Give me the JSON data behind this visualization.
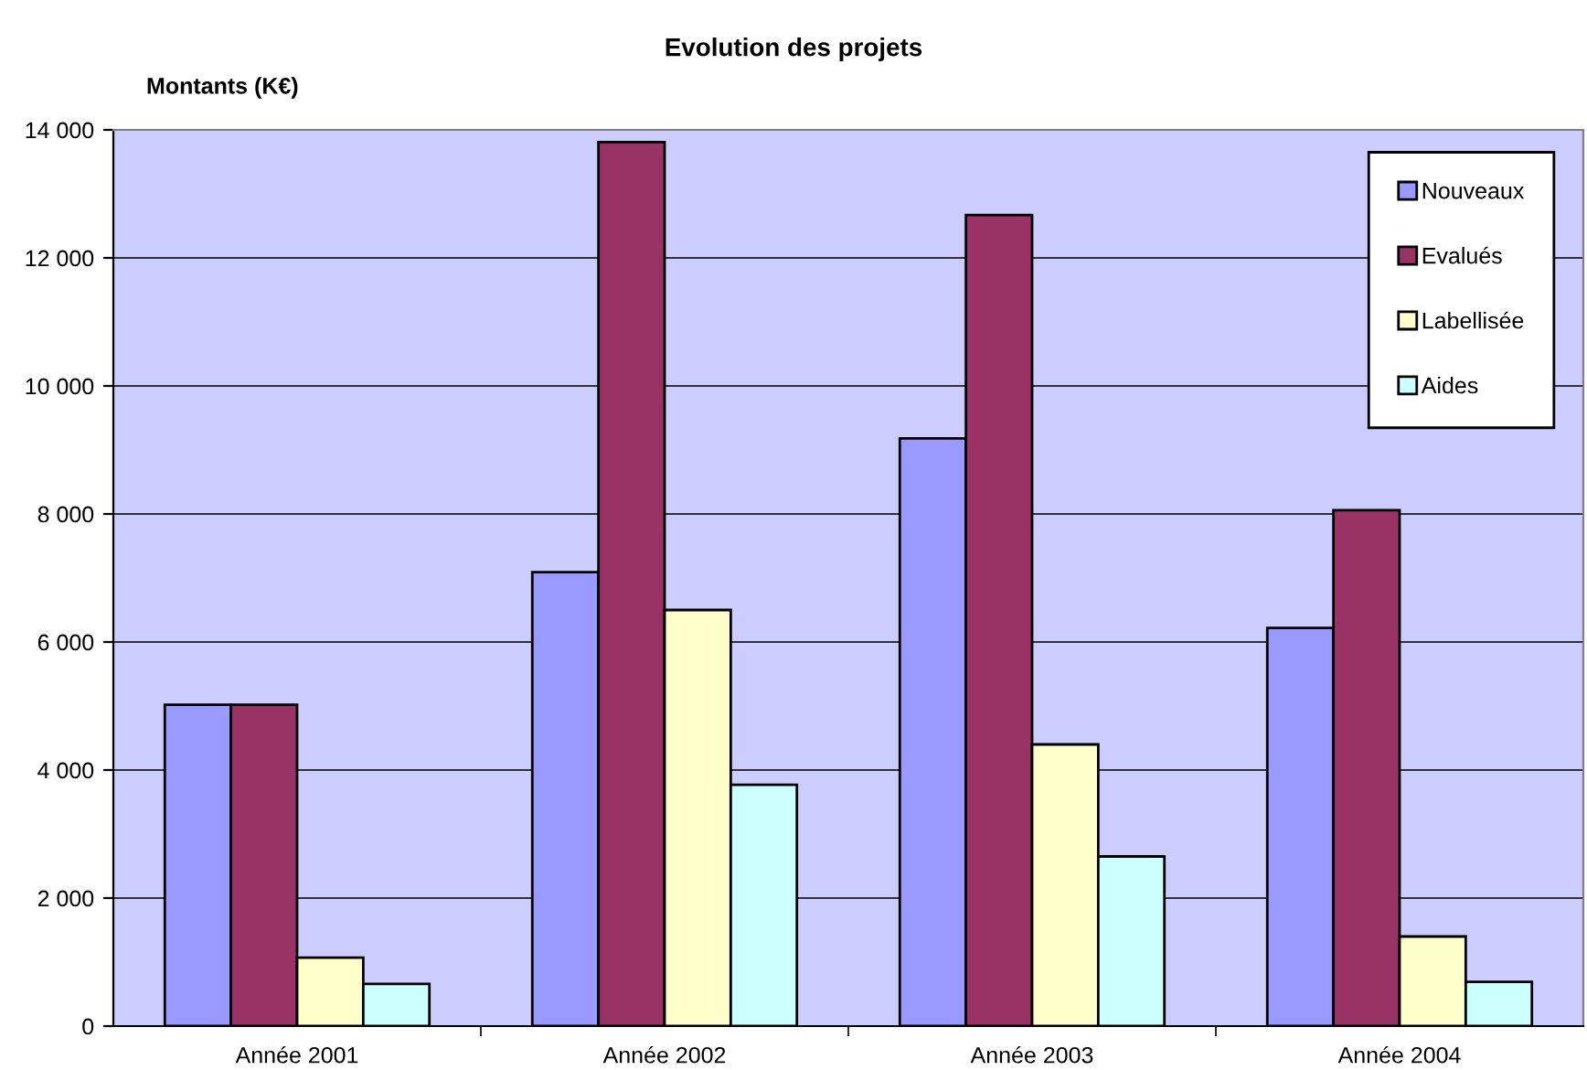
{
  "chart_data": {
    "type": "bar",
    "title": "Evolution des projets",
    "ylabel": "Montants (K€)",
    "categories": [
      "Année 2001",
      "Année 2002",
      "Année 2003",
      "Année 2004"
    ],
    "series": [
      {
        "name": "Nouveaux",
        "color": "#9999ff",
        "values": [
          5020,
          7090,
          9180,
          6220
        ]
      },
      {
        "name": "Evalués",
        "color": "#993366",
        "values": [
          5020,
          13810,
          12670,
          8060
        ]
      },
      {
        "name": "Labellisée",
        "color": "#ffffcc",
        "values": [
          1070,
          6500,
          4400,
          1400
        ]
      },
      {
        "name": "Aides",
        "color": "#ccffff",
        "values": [
          660,
          3770,
          2650,
          690
        ]
      }
    ],
    "ylim": [
      0,
      14000
    ],
    "yticks": [
      {
        "value": 0,
        "label": "0"
      },
      {
        "value": 2000,
        "label": "2 000"
      },
      {
        "value": 4000,
        "label": "4 000"
      },
      {
        "value": 6000,
        "label": "6 000"
      },
      {
        "value": 8000,
        "label": "8 000"
      },
      {
        "value": 10000,
        "label": "10 000"
      },
      {
        "value": 12000,
        "label": "12 000"
      },
      {
        "value": 14000,
        "label": "14 000"
      }
    ],
    "grid": "y",
    "legend": "top right"
  }
}
